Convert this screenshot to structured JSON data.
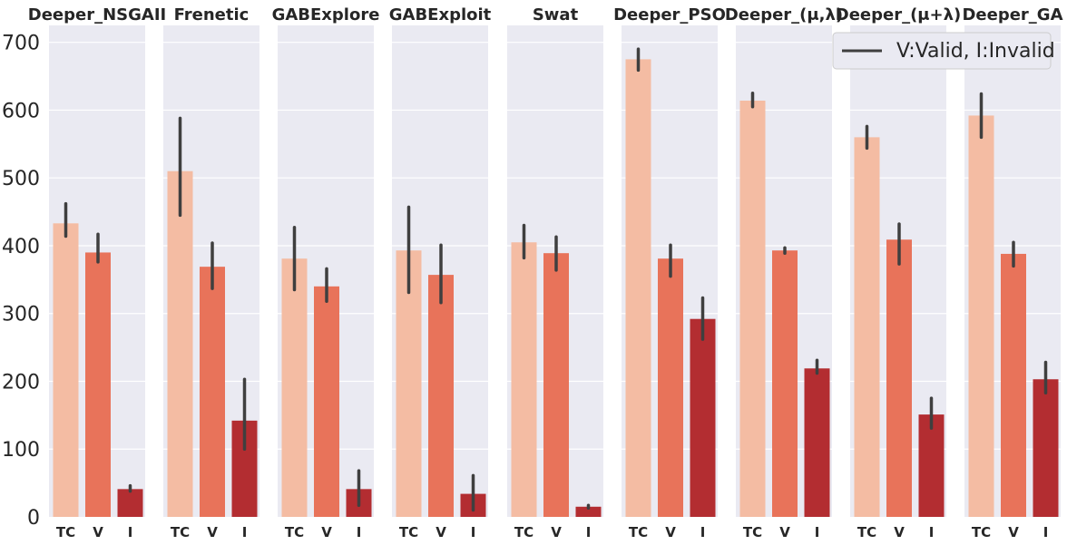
{
  "chart_data": {
    "type": "bar",
    "layout": "faceted",
    "ylim": [
      0,
      725
    ],
    "yticks": [
      0,
      100,
      200,
      300,
      400,
      500,
      600,
      700
    ],
    "categories": [
      "TC",
      "V",
      "I"
    ],
    "colors": [
      "#f4bca3",
      "#e8735a",
      "#b32d31"
    ],
    "errorbar_color": "#3f3f3f",
    "legend": {
      "label": "V:Valid, I:Invalid",
      "location": "top-right"
    },
    "panels": [
      {
        "title": "Deeper_NSGAII",
        "values": [
          433,
          390,
          41
        ],
        "err_low": [
          414,
          376,
          38
        ],
        "err_high": [
          462,
          417,
          46
        ]
      },
      {
        "title": "Frenetic",
        "values": [
          510,
          369,
          142
        ],
        "err_low": [
          445,
          337,
          100
        ],
        "err_high": [
          588,
          404,
          203
        ]
      },
      {
        "title": "GABExplore",
        "values": [
          381,
          340,
          41
        ],
        "err_low": [
          335,
          318,
          17
        ],
        "err_high": [
          427,
          366,
          68
        ]
      },
      {
        "title": "GABExploit",
        "values": [
          393,
          357,
          34
        ],
        "err_low": [
          331,
          316,
          10
        ],
        "err_high": [
          457,
          401,
          61
        ]
      },
      {
        "title": "Swat",
        "values": [
          405,
          389,
          15
        ],
        "err_low": [
          382,
          364,
          13
        ],
        "err_high": [
          430,
          413,
          17
        ]
      },
      {
        "title": "Deeper_PSO",
        "values": [
          675,
          381,
          292
        ],
        "err_low": [
          659,
          355,
          262
        ],
        "err_high": [
          690,
          401,
          323
        ]
      },
      {
        "title": "Deeper_(μ,λ)",
        "values": [
          614,
          393,
          219
        ],
        "err_low": [
          605,
          389,
          212
        ],
        "err_high": [
          625,
          397,
          231
        ]
      },
      {
        "title": "Deeper_(μ+λ)",
        "values": [
          560,
          409,
          151
        ],
        "err_low": [
          544,
          373,
          131
        ],
        "err_high": [
          576,
          432,
          175
        ]
      },
      {
        "title": "Deeper_GA",
        "values": [
          592,
          388,
          203
        ],
        "err_low": [
          560,
          370,
          183
        ],
        "err_high": [
          624,
          405,
          228
        ]
      }
    ]
  }
}
